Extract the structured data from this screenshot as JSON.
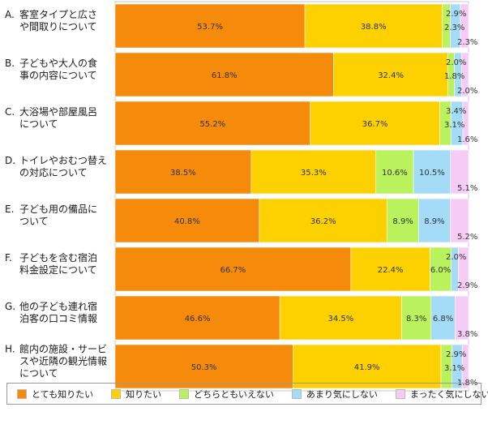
{
  "chart_data": {
    "type": "bar",
    "orientation": "horizontal",
    "stacked": true,
    "percent": true,
    "categories": [
      [
        "A.",
        "客室タイプと広さ",
        "や間取りについて"
      ],
      [
        "B.",
        "子どもや大人の食",
        "事の内容について"
      ],
      [
        "C.",
        "大浴場や部屋風呂",
        "について"
      ],
      [
        "D.",
        "トイレやおむつ替え",
        "の対応について"
      ],
      [
        "E.",
        "子ども用の備品に",
        "ついて"
      ],
      [
        "F.",
        "子どもを含む宿泊",
        "料金設定について"
      ],
      [
        "G.",
        "他の子ども連れ宿",
        "泊客の口コミ情報"
      ],
      [
        "H.",
        "館内の施設・サービ",
        "スや近隣の観光情報",
        "について"
      ]
    ],
    "series": [
      {
        "name": "とても知りたい",
        "color": "#f58a0b",
        "values": [
          53.7,
          61.8,
          55.2,
          38.5,
          40.8,
          66.7,
          46.6,
          50.3
        ]
      },
      {
        "name": "知りたい",
        "color": "#fdd000",
        "values": [
          38.8,
          32.4,
          36.7,
          35.3,
          36.2,
          22.4,
          34.5,
          41.9
        ]
      },
      {
        "name": "どちらともいえない",
        "color": "#b9f25c",
        "values": [
          2.3,
          1.8,
          3.1,
          10.6,
          8.9,
          6.0,
          8.3,
          3.1
        ]
      },
      {
        "name": "あまり気にしない",
        "color": "#a4dcf8",
        "values": [
          2.9,
          2.0,
          3.4,
          10.5,
          8.9,
          2.0,
          6.8,
          2.9
        ]
      },
      {
        "name": "まったく気にしない",
        "color": "#f6ccf6",
        "values": [
          2.3,
          2.0,
          1.6,
          5.1,
          5.2,
          2.9,
          3.8,
          1.8
        ]
      }
    ],
    "xlim": [
      0,
      100
    ],
    "legend": "bottom"
  }
}
